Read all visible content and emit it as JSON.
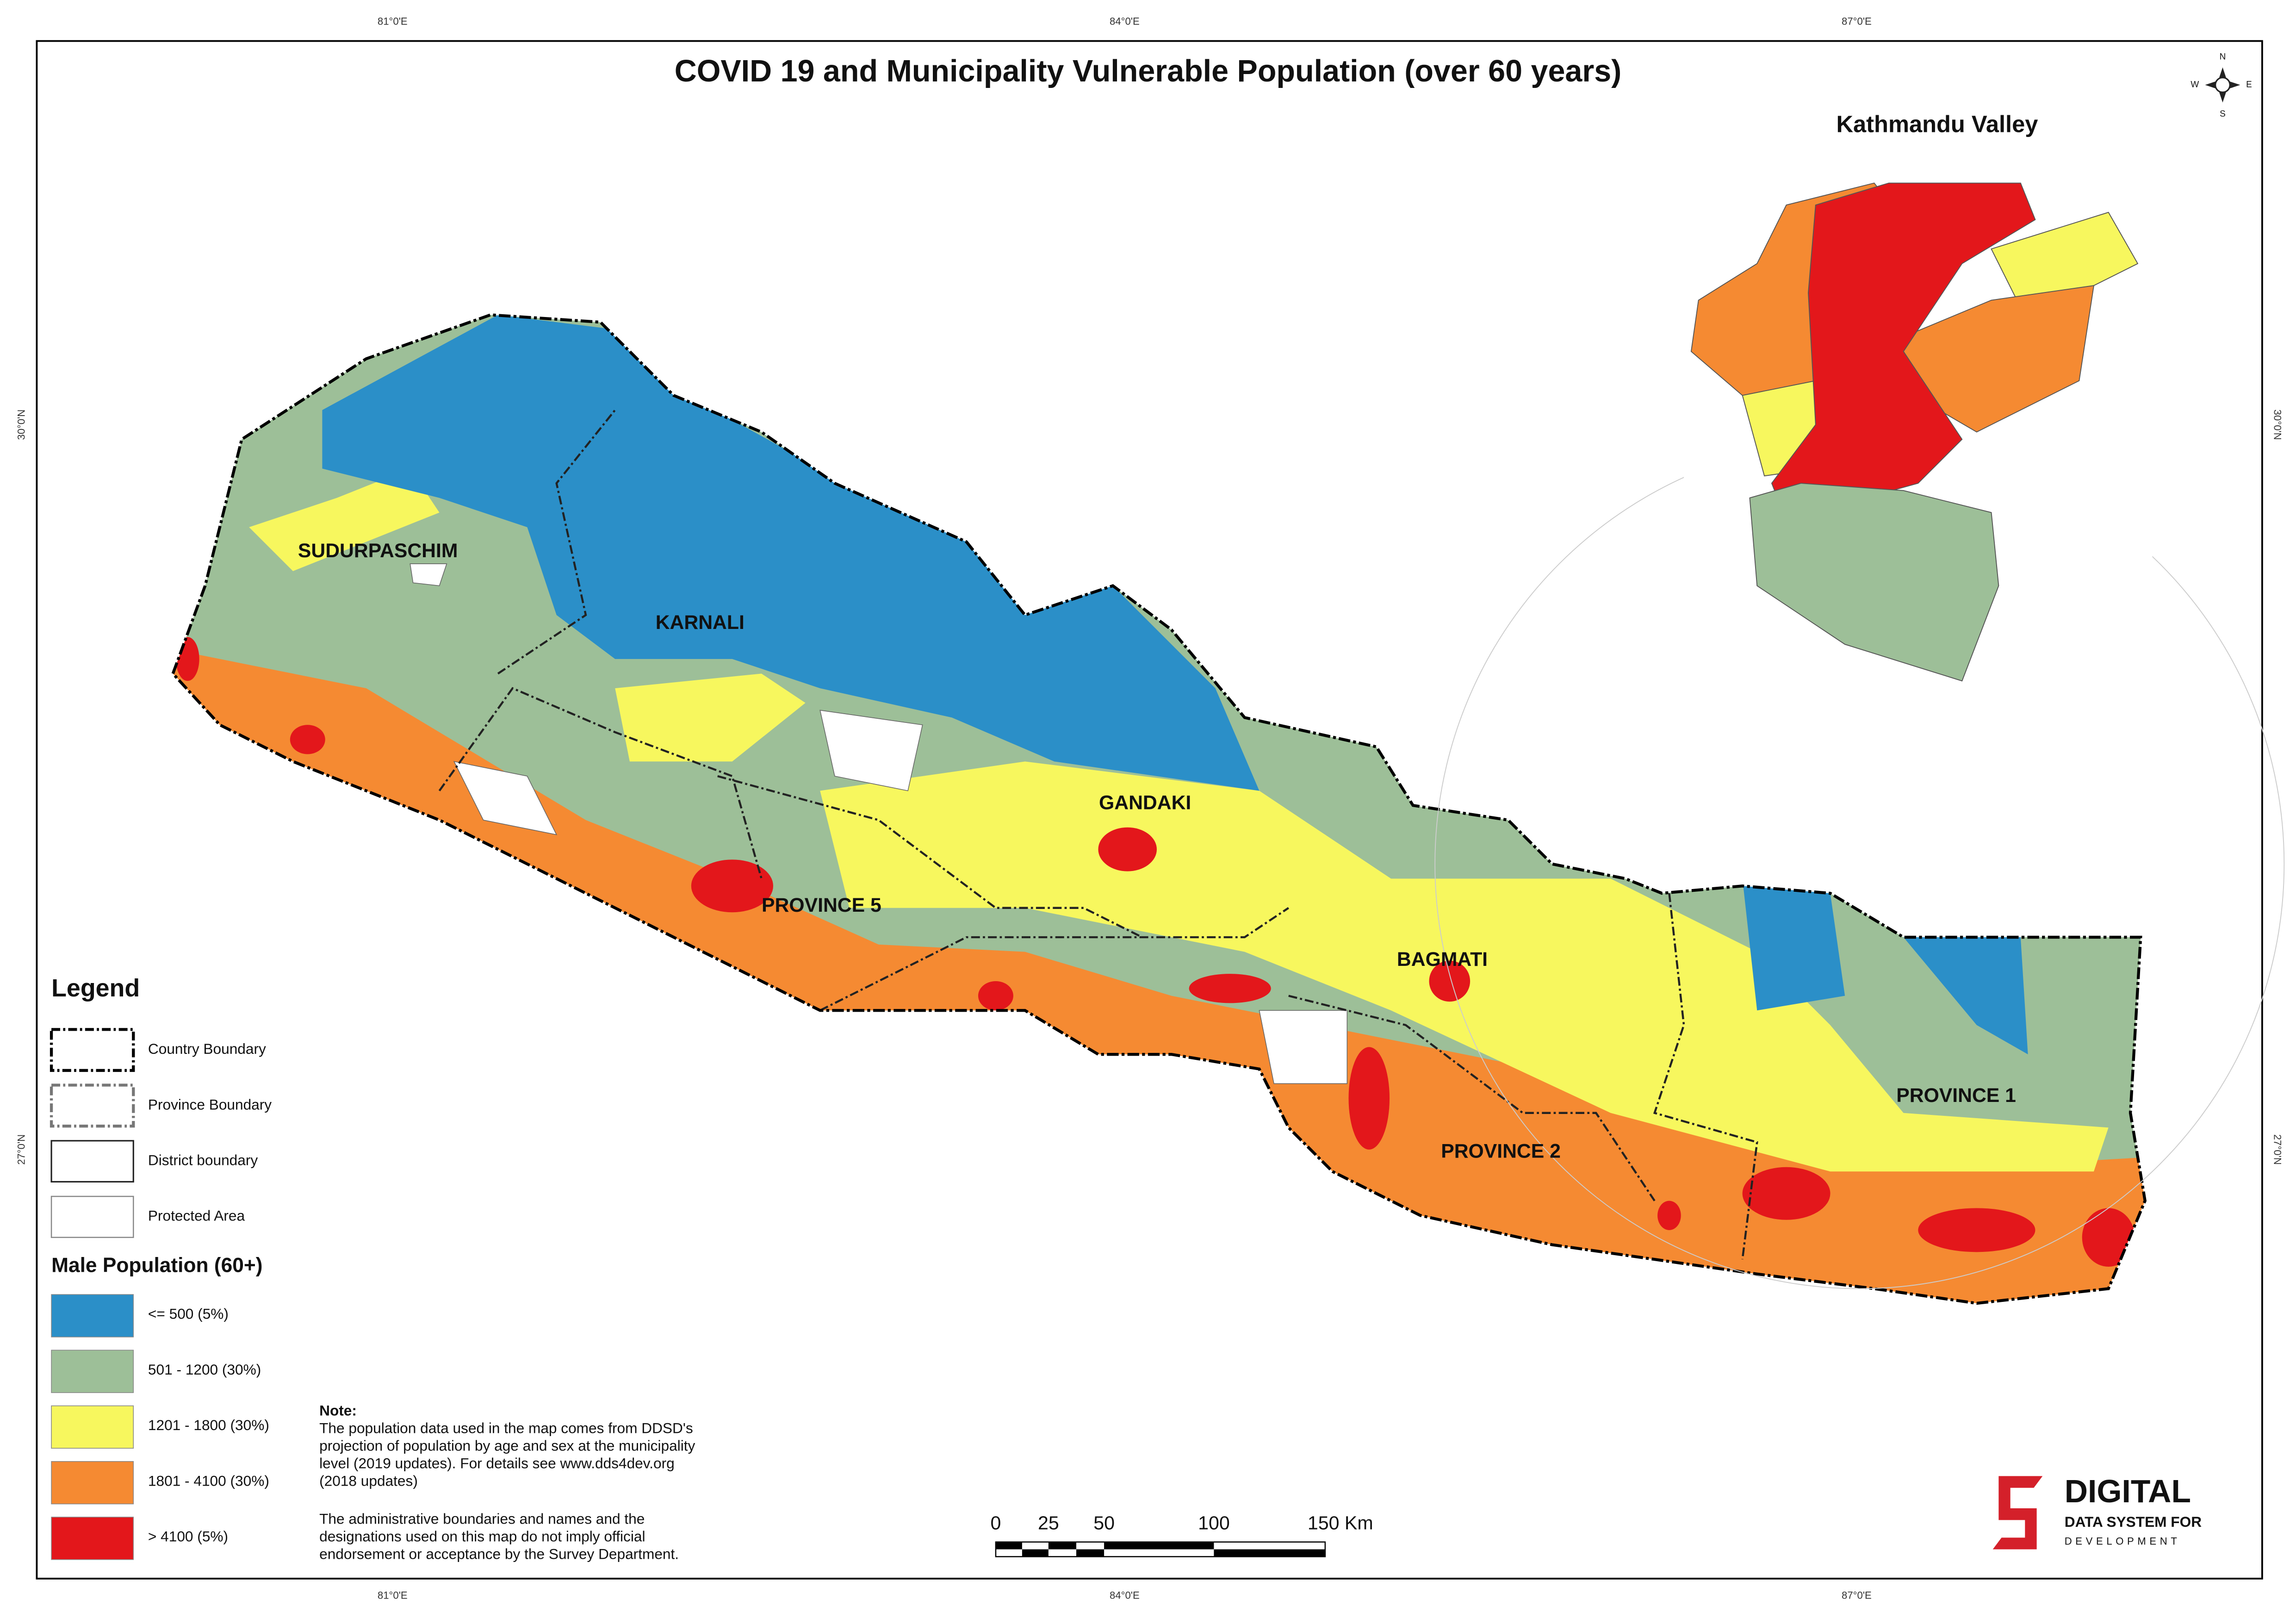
{
  "title": "COVID 19 and Municipality Vulnerable Population (over 60 years)",
  "inset": {
    "title": "Kathmandu Valley"
  },
  "graticule": {
    "top": [
      "81°0'E",
      "84°0'E",
      "87°0'E"
    ],
    "bottom": [
      "81°0'E",
      "84°0'E",
      "87°0'E"
    ],
    "left": [
      "30°0'N",
      "27°0'N"
    ],
    "right": [
      "30°0'N",
      "27°0'N"
    ]
  },
  "compass": [
    "N",
    "E",
    "S",
    "W"
  ],
  "regions": [
    "SUDURPASCHIM",
    "KARNALI",
    "GANDAKI",
    "PROVINCE 5",
    "BAGMATI",
    "PROVINCE 2",
    "PROVINCE 1"
  ],
  "legend": {
    "title": "Legend",
    "boundaries": [
      "Country Boundary",
      "Province Boundary",
      "District boundary",
      "Protected Area"
    ],
    "class_title": "Male Population (60+)",
    "classes": [
      {
        "label": "<= 500 (5%)",
        "color": "#2b8fc8"
      },
      {
        "label": "501 - 1200 (30%)",
        "color": "#9dbf98"
      },
      {
        "label": "1201 - 1800 (30%)",
        "color": "#f7f75e"
      },
      {
        "label": "1801 - 4100 (30%)",
        "color": "#f58a32"
      },
      {
        "label": "> 4100 (5%)",
        "color": "#e3171b"
      }
    ]
  },
  "note": {
    "title": "Note:",
    "lines": [
      "The population data used in the map comes from DDSD's",
      "projection of population by age and sex at the municipality",
      "level (2019 updates). For details see www.dds4dev.org",
      "(2018 updates)",
      "The administrative boundaries and names and the",
      " designations used on this map do not imply official",
      " endorsement or acceptance by the Survey Department."
    ]
  },
  "scale_bar": {
    "labels": [
      "0",
      "25",
      "50",
      "100",
      "150 Km"
    ]
  },
  "logo": {
    "name": "DIGITAL",
    "line1": "DATA SYSTEM FOR",
    "line2": "DEVELOPMENT"
  }
}
